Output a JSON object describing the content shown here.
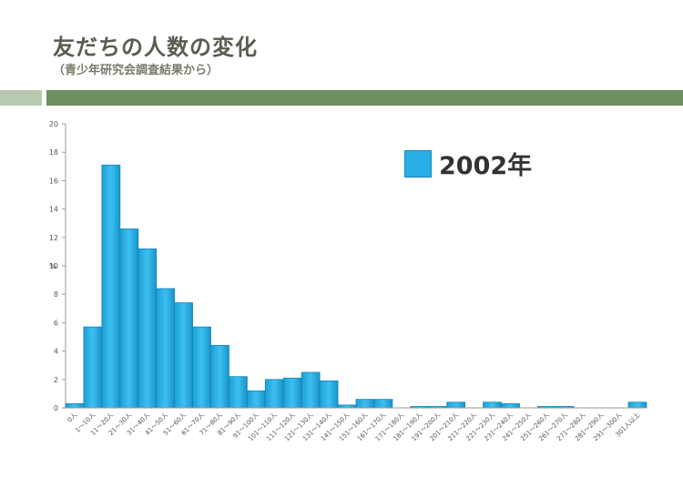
{
  "slide": {
    "title": "友だちの人数の変化",
    "subtitle": "（青少年研究会調査結果から）"
  },
  "chart_data": {
    "type": "bar",
    "categories": [
      "0人",
      "1〜10人",
      "11〜20人",
      "21〜30人",
      "31〜40人",
      "41〜50人",
      "51〜60人",
      "61〜70人",
      "71〜80人",
      "81〜90人",
      "91〜100人",
      "101〜110人",
      "111〜120人",
      "121〜130人",
      "131〜140人",
      "141〜150人",
      "151〜160人",
      "161〜170人",
      "171〜180人",
      "181〜190人",
      "191〜200人",
      "201〜210人",
      "211〜220人",
      "221〜230人",
      "231〜240人",
      "241〜250人",
      "251〜260人",
      "261〜270人",
      "271〜280人",
      "281〜290人",
      "291〜300人",
      "301人以上"
    ],
    "series": [
      {
        "name": "2002年",
        "values": [
          0.3,
          5.7,
          17.1,
          12.6,
          11.2,
          8.4,
          7.4,
          5.7,
          4.4,
          2.2,
          1.2,
          2.0,
          2.1,
          2.5,
          1.9,
          0.2,
          0.6,
          0.6,
          0.0,
          0.1,
          0.1,
          0.4,
          0.0,
          0.4,
          0.3,
          0.0,
          0.1,
          0.1,
          0.0,
          0.0,
          0.0,
          0.4
        ],
        "color": "#29aee6"
      }
    ],
    "ylabel": "%",
    "xlabel": "",
    "ylim": [
      0,
      20
    ],
    "yticks": [
      0,
      2,
      4,
      6,
      8,
      10,
      12,
      14,
      16,
      18,
      20
    ],
    "grid": false,
    "legend_position": "top-right"
  }
}
